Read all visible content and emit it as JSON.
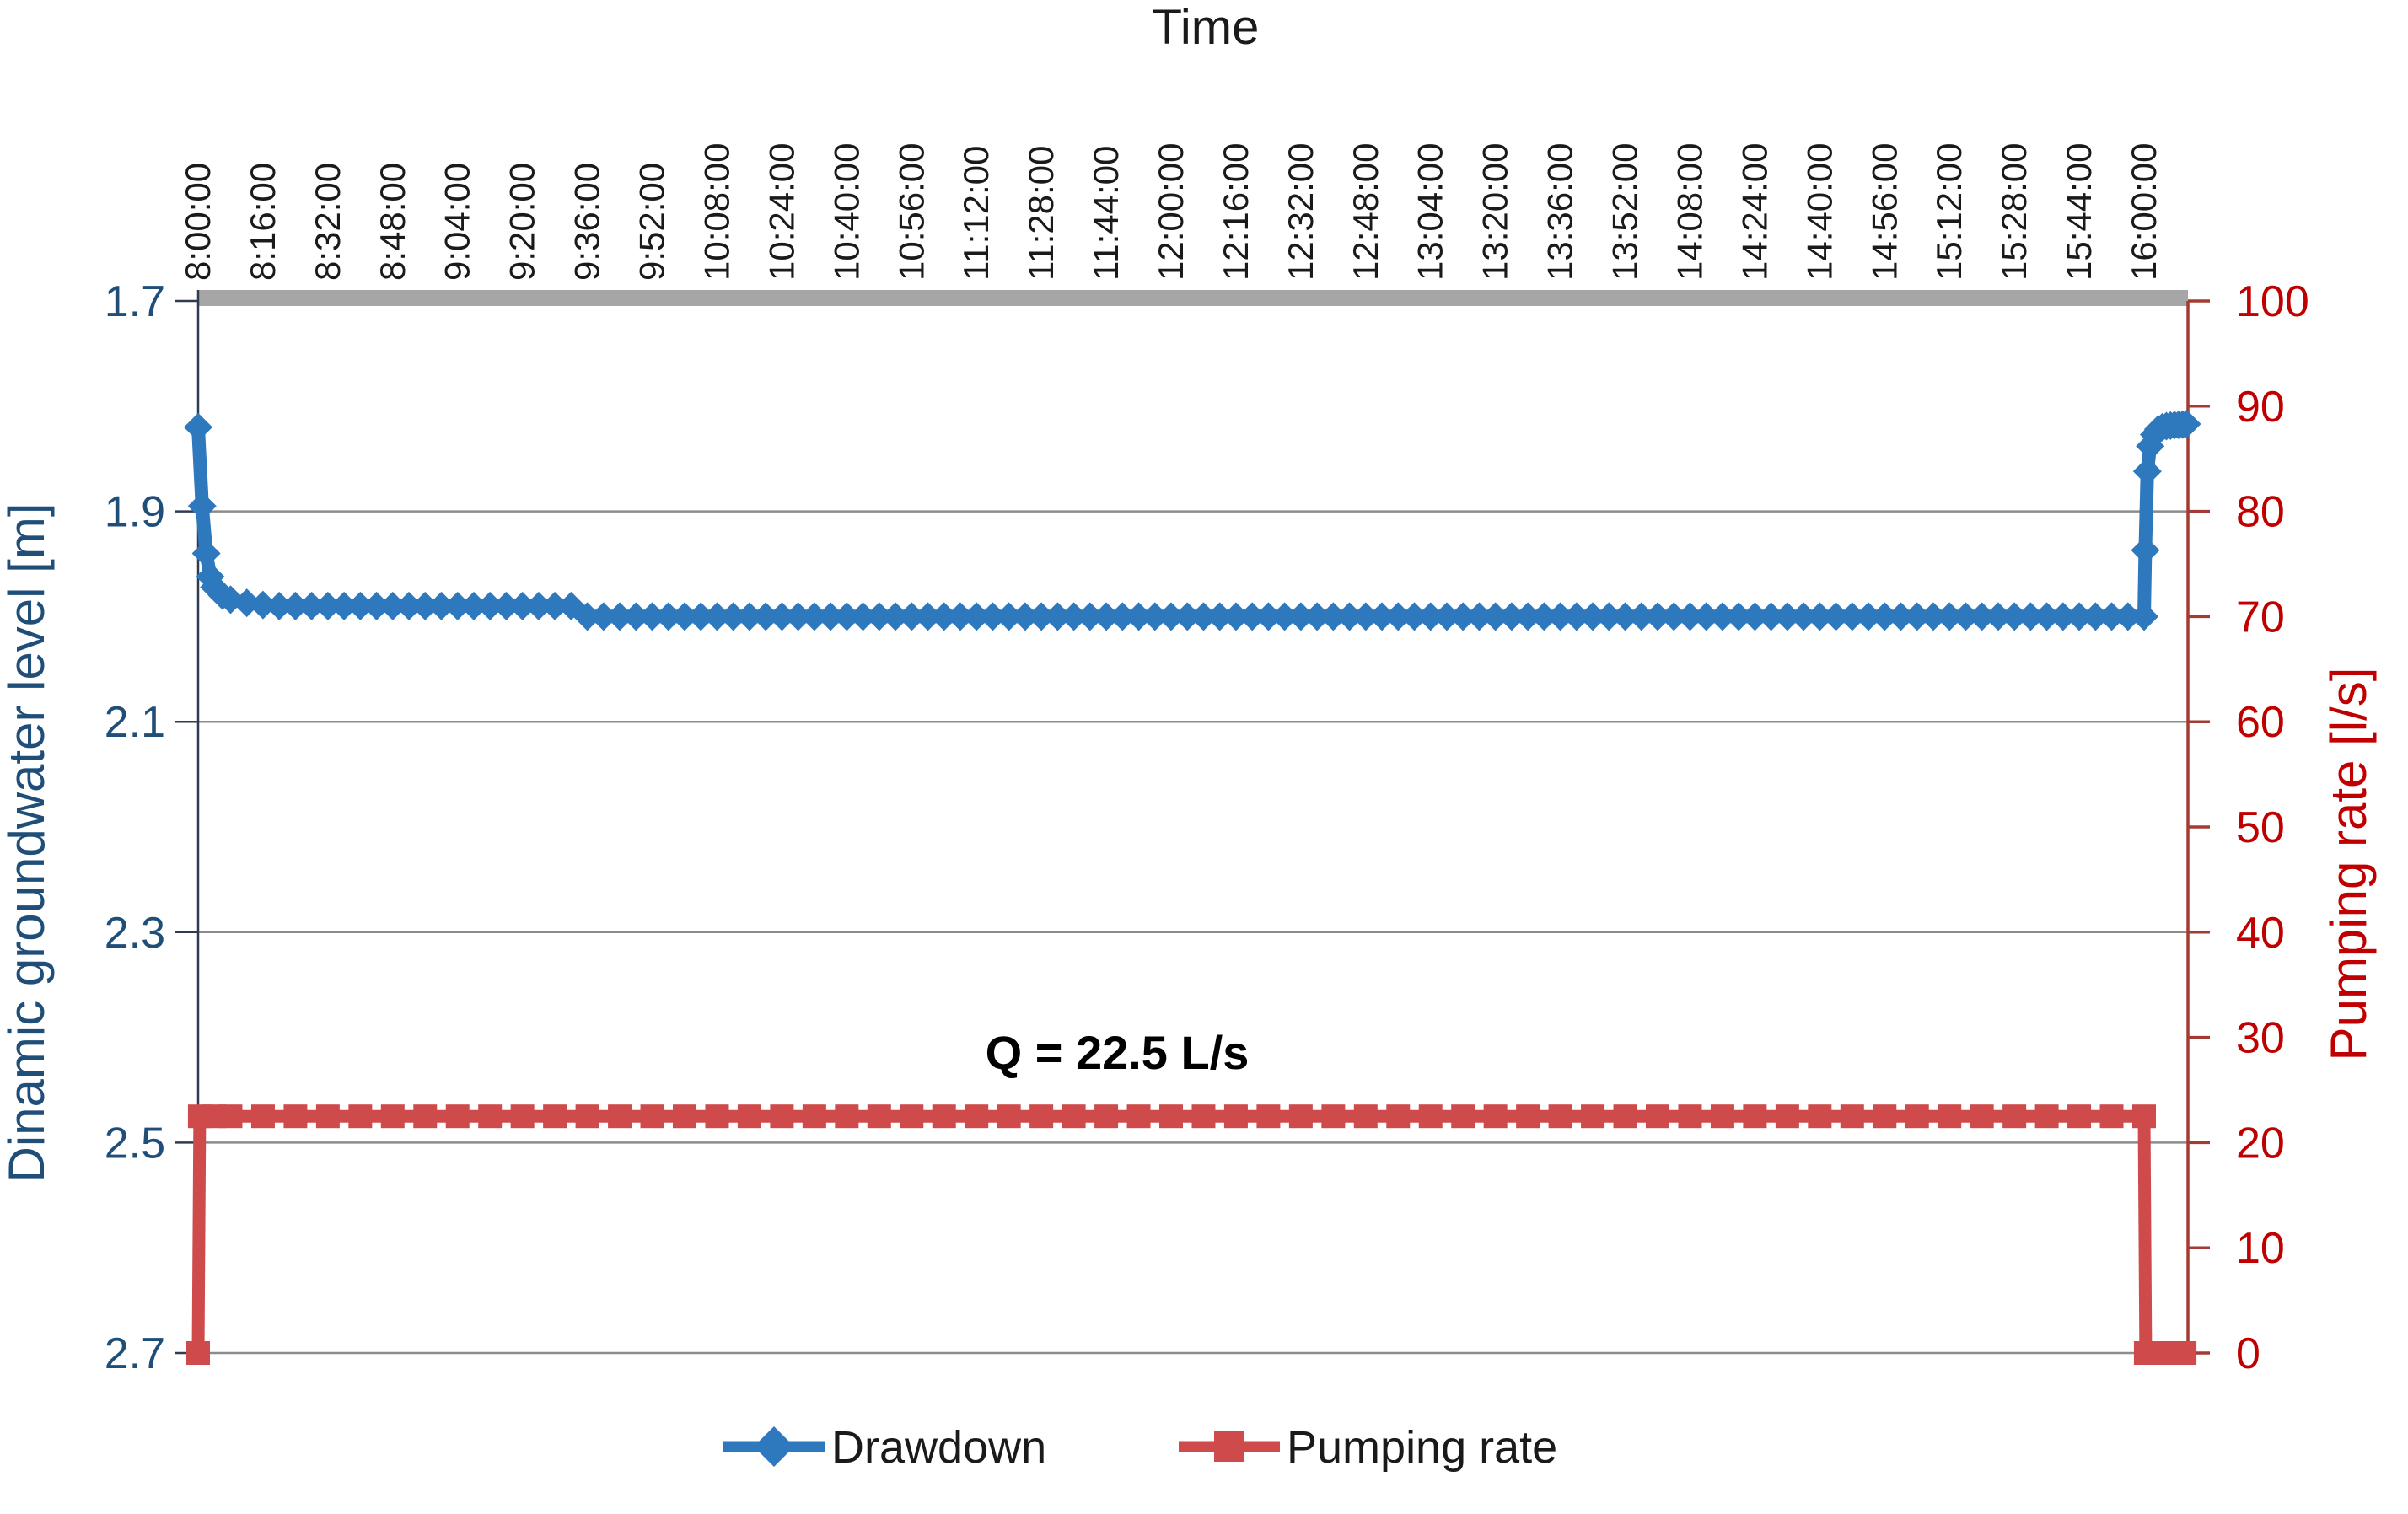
{
  "chart": {
    "top_title": "Time",
    "annotation": "Q = 22.5 L/s",
    "left_axis": {
      "title": "Dinamic groundwater level [m]",
      "color": "#1F4E79",
      "min": 1.7,
      "max": 2.7,
      "tick_values": [
        1.7,
        1.9,
        2.1,
        2.3,
        2.5,
        2.7
      ],
      "tick_labels": [
        "1.7",
        "1.9",
        "2.1",
        "2.3",
        "2.5",
        "2.7"
      ],
      "gridline_values": [
        1.9,
        2.1,
        2.3,
        2.5,
        2.7
      ]
    },
    "right_axis": {
      "title": "Pumping rate [l/s]",
      "color": "#C00000",
      "line_color": "#A33B32",
      "min": 0,
      "max": 100,
      "tick_values": [
        0,
        10,
        20,
        30,
        40,
        50,
        60,
        70,
        80,
        90,
        100
      ],
      "tick_labels": [
        "0",
        "10",
        "20",
        "30",
        "40",
        "50",
        "60",
        "70",
        "80",
        "90",
        "100"
      ]
    },
    "x_axis": {
      "title": "Time",
      "interval_minutes": 16,
      "labels": [
        "8:00:00",
        "8:16:00",
        "8:32:00",
        "8:48:00",
        "9:04:00",
        "9:20:00",
        "9:36:00",
        "9:52:00",
        "10:08:00",
        "10:24:00",
        "10:40:00",
        "10:56:00",
        "11:12:00",
        "11:28:00",
        "11:44:00",
        "12:00:00",
        "12:16:00",
        "12:32:00",
        "12:48:00",
        "13:04:00",
        "13:20:00",
        "13:36:00",
        "13:52:00",
        "14:08:00",
        "14:24:00",
        "14:40:00",
        "14:56:00",
        "15:12:00",
        "15:28:00",
        "15:44:00",
        "16:00:00"
      ]
    },
    "legend": [
      {
        "label": "Drawdown",
        "color": "#2E78BE",
        "marker": "diamond"
      },
      {
        "label": "Pumping rate",
        "color": "#CF4B4B",
        "marker": "square"
      }
    ],
    "colors": {
      "gridline": "#8C8C8C",
      "top_axis_bar": "#A6A6A6",
      "left_axis_line": "#2F3B52",
      "text": "#1a1a1a"
    }
  },
  "chart_data": {
    "type": "line",
    "title": "Time",
    "x_unit": "minutes since 8:00:00",
    "x_range_minutes": [
      0,
      491
    ],
    "annotation": "Q = 22.5 L/s",
    "axes": {
      "left": {
        "label": "Dinamic groundwater level [m]",
        "range": [
          1.7,
          2.7
        ],
        "direction": "increasing downward"
      },
      "right": {
        "label": "Pumping rate [l/s]",
        "range": [
          0,
          100
        ]
      }
    },
    "series": [
      {
        "name": "Drawdown",
        "axis": "left",
        "marker": "diamond",
        "color": "#2E78BE",
        "points_runs": [
          {
            "pts": [
              [
                0,
                1.82
              ],
              [
                1,
                1.895
              ],
              [
                2,
                1.94
              ],
              [
                3,
                1.962
              ],
              [
                4,
                1.972
              ],
              [
                6,
                1.98
              ],
              [
                8,
                1.984
              ],
              [
                12,
                1.987
              ],
              [
                16,
                1.989
              ],
              [
                20,
                1.99
              ]
            ]
          },
          {
            "run": {
              "from": 24,
              "to": 92,
              "step": 4,
              "value": 1.99
            }
          },
          {
            "run": {
              "from": 96,
              "to": 480,
              "step": 4,
              "value": 2.0
            }
          },
          {
            "pts": [
              [
                480.3,
                1.937
              ],
              [
                480.8,
                1.862
              ],
              [
                481.5,
                1.838
              ],
              [
                482.5,
                1.827
              ],
              [
                483.5,
                1.822
              ],
              [
                484.5,
                1.82
              ],
              [
                485.5,
                1.819
              ],
              [
                486.5,
                1.8185
              ],
              [
                487.5,
                1.818
              ],
              [
                488.5,
                1.8178
              ],
              [
                489.5,
                1.8175
              ],
              [
                490.5,
                1.817
              ]
            ]
          }
        ]
      },
      {
        "name": "Pumping rate",
        "axis": "right",
        "marker": "square",
        "color": "#CF4B4B",
        "points_runs": [
          {
            "pts": [
              [
                0,
                0
              ],
              [
                0.4,
                22.5
              ],
              [
                4,
                22.5
              ]
            ]
          },
          {
            "run": {
              "from": 8,
              "to": 480,
              "step": 8,
              "value": 22.5
            }
          },
          {
            "pts": [
              [
                480.4,
                0
              ]
            ]
          },
          {
            "run": {
              "from": 481,
              "to": 490,
              "step": 1,
              "value": 0
            }
          }
        ]
      }
    ]
  }
}
